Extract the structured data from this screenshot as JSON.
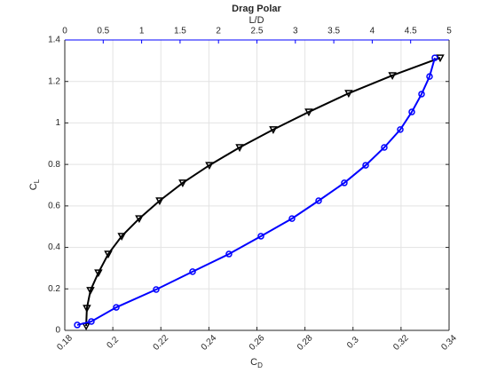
{
  "chart_data": {
    "type": "line",
    "title": "Drag Polar",
    "xlabel": {
      "text": "C",
      "subscript": "D"
    },
    "ylabel": {
      "text": "C",
      "subscript": "L"
    },
    "x2label": "L/D",
    "xlim": [
      0.18,
      0.34
    ],
    "xticks": [
      0.18,
      0.2,
      0.22,
      0.24,
      0.26,
      0.28,
      0.3,
      0.32,
      0.34
    ],
    "x2lim": [
      0,
      5
    ],
    "x2ticks": [
      0,
      0.5,
      1,
      1.5,
      2,
      2.5,
      3,
      3.5,
      4,
      4.5,
      5
    ],
    "x2color": "#0000ff",
    "ylim": [
      0,
      1.4
    ],
    "yticks": [
      0,
      0.2,
      0.4,
      0.6,
      0.8,
      1,
      1.2,
      1.4
    ],
    "grid": true,
    "series": [
      {
        "color": "#000000",
        "marker": "triangle-down",
        "axis": "x",
        "x": [
          0.1889,
          0.1892,
          0.1907,
          0.194,
          0.1981,
          0.2037,
          0.211,
          0.2195,
          0.2291,
          0.2402,
          0.2528,
          0.2668,
          0.2816,
          0.2982,
          0.3164,
          0.3363
        ],
        "values": [
          0.021,
          0.107,
          0.193,
          0.278,
          0.368,
          0.454,
          0.539,
          0.625,
          0.711,
          0.796,
          0.882,
          0.968,
          1.053,
          1.143,
          1.229,
          1.314
        ]
      },
      {
        "color": "#0000ff",
        "marker": "circle",
        "axis": "x2",
        "x": [
          0.162,
          0.346,
          0.67,
          1.189,
          1.663,
          2.136,
          2.552,
          2.956,
          3.303,
          3.637,
          3.915,
          4.157,
          4.365,
          4.515,
          4.642,
          4.746,
          4.815
        ],
        "values": [
          0.026,
          0.043,
          0.111,
          0.197,
          0.283,
          0.368,
          0.454,
          0.539,
          0.625,
          0.711,
          0.796,
          0.882,
          0.968,
          1.053,
          1.139,
          1.224,
          1.314
        ]
      }
    ]
  }
}
